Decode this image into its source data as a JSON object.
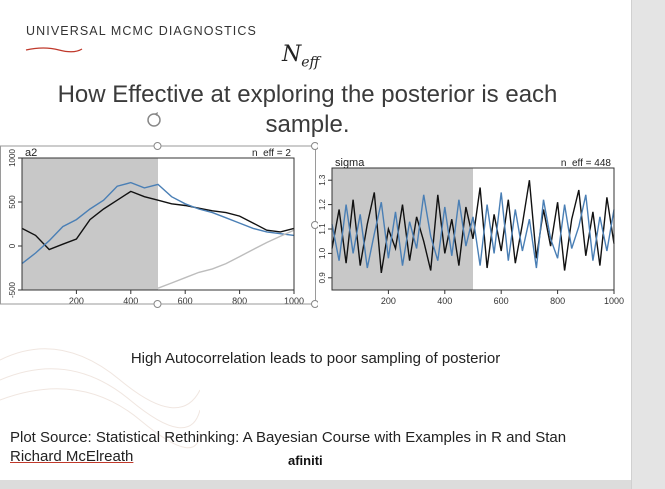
{
  "slide": {
    "brand": "UNIVERSAL MCMC DIAGNOSTICS",
    "neff_main": "N",
    "neff_sub": "eff",
    "headline_line1": "How Effective at exploring the posterior is each",
    "headline_line2": "sample.",
    "caption": "High Autocorrelation leads to poor sampling of posterior",
    "source_line1": "Plot Source: Statistical Rethinking: A Bayesian Course with Examples in R and Stan",
    "source_author": "Richard McElreath",
    "logo": "afiniti"
  },
  "colors": {
    "warmup_shade": "#c8c8c8",
    "chain_black": "#111111",
    "chain_blue": "#4a7fb5",
    "chain_gray": "#bdbdbd",
    "brand_underline": "#c0392b"
  },
  "chart_data": [
    {
      "type": "line",
      "panel": "a2",
      "label": "a2",
      "annotation": "n_eff = 2",
      "xlim": [
        0,
        1000
      ],
      "ylim": [
        -500,
        1000
      ],
      "xticks": [
        200,
        400,
        600,
        800,
        1000
      ],
      "yticks": [
        -500,
        0,
        500,
        1000
      ],
      "warmup_end": 500,
      "series": [
        {
          "x": [
            0,
            50,
            100,
            150,
            200,
            250,
            300,
            350,
            400,
            450,
            500,
            550,
            600,
            650,
            700,
            750,
            800,
            850,
            900,
            950,
            1000
          ],
          "values": [
            200,
            120,
            -40,
            20,
            80,
            300,
            420,
            520,
            620,
            560,
            520,
            480,
            460,
            430,
            400,
            380,
            340,
            260,
            180,
            160,
            200
          ]
        },
        {
          "x": [
            0,
            50,
            100,
            150,
            200,
            250,
            300,
            350,
            400,
            450,
            500,
            550,
            600,
            650,
            700,
            750,
            800,
            850,
            900,
            950,
            1000
          ],
          "values": [
            -200,
            -80,
            60,
            220,
            300,
            420,
            520,
            680,
            720,
            660,
            700,
            560,
            480,
            420,
            380,
            320,
            260,
            200,
            160,
            140,
            120
          ]
        },
        {
          "x": [
            500,
            550,
            600,
            650,
            700,
            750,
            800,
            850,
            900,
            950,
            1000
          ],
          "values": [
            -480,
            -420,
            -360,
            -300,
            -260,
            -200,
            -120,
            -40,
            40,
            110,
            180
          ]
        }
      ]
    },
    {
      "type": "line",
      "panel": "sigma",
      "label": "sigma",
      "annotation": "n_eff = 448",
      "xlim": [
        0,
        1000
      ],
      "ylim": [
        0.85,
        1.35
      ],
      "xticks": [
        200,
        400,
        600,
        800,
        1000
      ],
      "yticks": [
        0.9,
        1.0,
        1.1,
        1.2,
        1.3
      ],
      "warmup_end": 500,
      "series": [
        {
          "x": [
            0,
            25,
            50,
            75,
            100,
            125,
            150,
            175,
            200,
            225,
            250,
            275,
            300,
            325,
            350,
            375,
            400,
            425,
            450,
            475,
            500,
            525,
            550,
            575,
            600,
            625,
            650,
            675,
            700,
            725,
            750,
            775,
            800,
            825,
            850,
            875,
            900,
            925,
            950,
            975,
            1000
          ],
          "values": [
            1.02,
            1.18,
            0.96,
            1.22,
            0.95,
            1.12,
            1.25,
            0.92,
            1.1,
            1.02,
            1.2,
            0.97,
            1.15,
            1.05,
            0.93,
            1.24,
            1.0,
            1.14,
            0.95,
            1.19,
            1.06,
            1.27,
            0.94,
            1.16,
            1.01,
            1.22,
            0.96,
            1.12,
            1.3,
            0.98,
            1.18,
            1.03,
            1.21,
            0.93,
            1.14,
            1.26,
            0.99,
            1.17,
            0.95,
            1.23,
            1.04
          ]
        },
        {
          "x": [
            0,
            25,
            50,
            75,
            100,
            125,
            150,
            175,
            200,
            225,
            250,
            275,
            300,
            325,
            350,
            375,
            400,
            425,
            450,
            475,
            500,
            525,
            550,
            575,
            600,
            625,
            650,
            675,
            700,
            725,
            750,
            775,
            800,
            825,
            850,
            875,
            900,
            925,
            950,
            975,
            1000
          ],
          "values": [
            1.12,
            0.97,
            1.2,
            1.0,
            1.16,
            0.94,
            1.08,
            1.21,
            0.98,
            1.17,
            0.95,
            1.13,
            1.02,
            1.24,
            1.07,
            0.97,
            1.19,
            0.99,
            1.22,
            1.03,
            1.15,
            0.95,
            1.2,
            1.0,
            1.25,
            0.97,
            1.18,
            1.01,
            1.14,
            0.94,
            1.22,
            1.06,
            0.98,
            1.2,
            1.02,
            1.11,
            1.24,
            0.97,
            1.15,
            1.01,
            1.18
          ]
        }
      ]
    }
  ]
}
